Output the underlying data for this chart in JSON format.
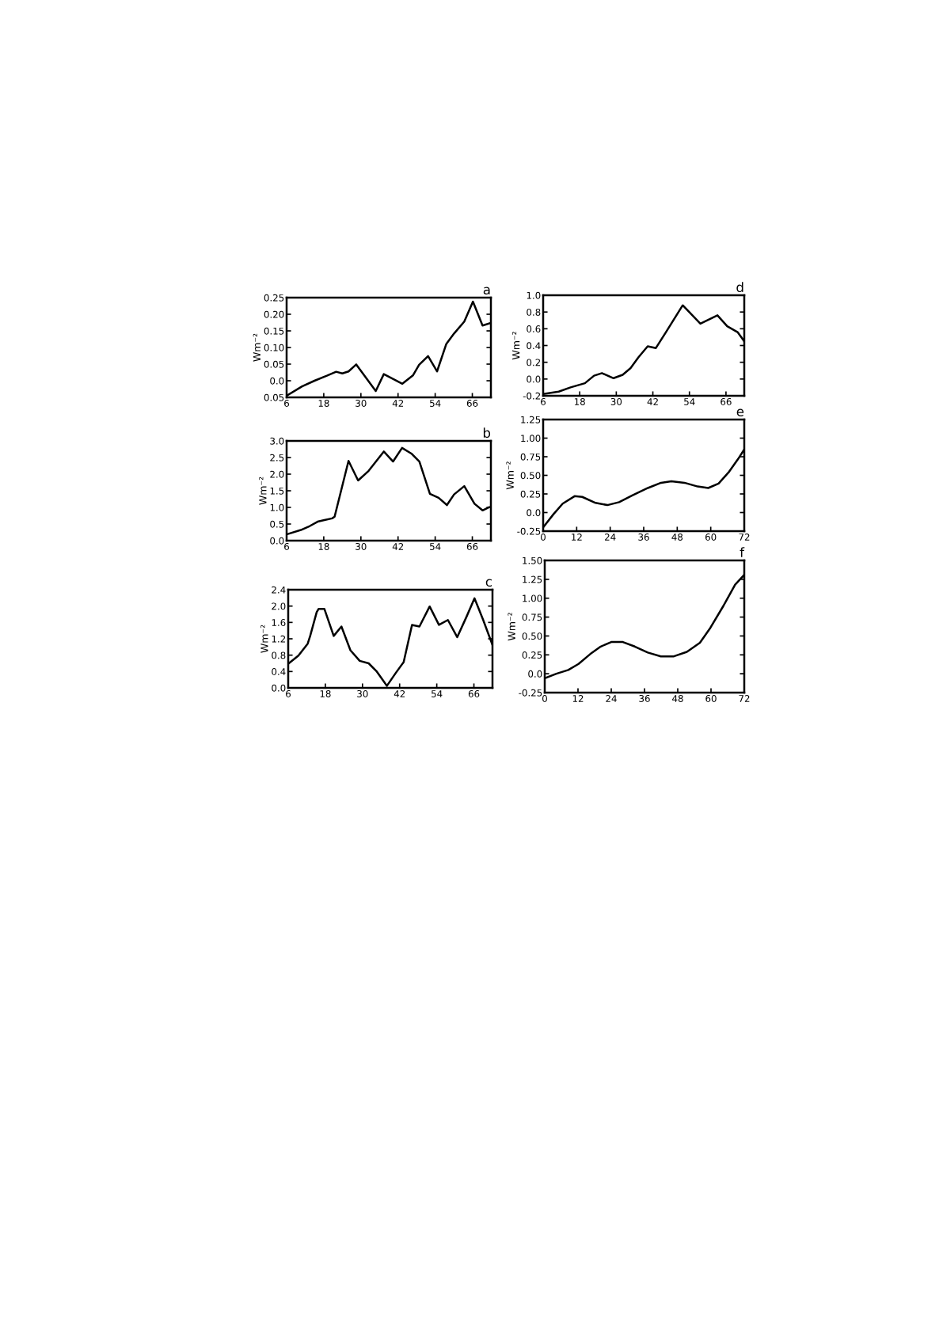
{
  "chart_data": [
    {
      "type": "line",
      "title": "a",
      "ylabel": "Wm⁻²",
      "x": [
        6,
        11,
        15,
        19,
        22,
        24,
        26,
        28.5,
        34.8,
        37.4,
        43.4,
        46.8,
        48.8,
        51.7,
        54.6,
        57.6,
        60.1,
        63.4,
        66.2,
        69.3,
        72
      ],
      "series": [
        {
          "color": "#000000",
          "values": [
            -0.045,
            -0.017,
            0.0,
            0.015,
            0.027,
            0.022,
            0.028,
            0.049,
            -0.031,
            0.02,
            -0.009,
            0.016,
            0.048,
            0.074,
            0.028,
            0.111,
            0.142,
            0.178,
            0.238,
            0.166,
            0.174
          ]
        }
      ],
      "xlim": [
        6,
        72
      ],
      "xticks": [
        6,
        18,
        30,
        42,
        54,
        66
      ],
      "ylim": [
        -0.05,
        0.25
      ],
      "yticks": [
        {
          "value": -0.05,
          "label": "0.05"
        },
        {
          "value": 0,
          "label": "0.0"
        },
        0.05,
        {
          "value": 0.1,
          "label": "0.10"
        },
        0.15,
        {
          "value": 0.2,
          "label": "0.20"
        },
        0.25
      ]
    },
    {
      "type": "line",
      "title": "b",
      "ylabel": "Wm⁻²",
      "x": [
        6.4,
        10.6,
        13.5,
        16,
        18.2,
        20.7,
        21.5,
        26,
        29.1,
        32.5,
        37.4,
        40.4,
        43.3,
        46.3,
        48.9,
        52.3,
        55.1,
        57.8,
        60.1,
        63.4,
        66.7,
        69.3,
        71.5
      ],
      "series": [
        {
          "color": "#000000",
          "values": [
            0.2,
            0.32,
            0.44,
            0.57,
            0.62,
            0.67,
            0.72,
            2.4,
            1.81,
            2.1,
            2.68,
            2.38,
            2.79,
            2.62,
            2.38,
            1.41,
            1.29,
            1.07,
            1.39,
            1.64,
            1.11,
            0.91,
            1.01
          ]
        }
      ],
      "xlim": [
        6,
        72
      ],
      "xticks": [
        6,
        18,
        30,
        42,
        54,
        66
      ],
      "ylim": [
        0,
        3
      ],
      "yticks": [
        {
          "value": 0,
          "label": "0.0"
        },
        0.5,
        {
          "value": 1,
          "label": "1.0"
        },
        1.5,
        {
          "value": 2,
          "label": "2.0"
        },
        2.5,
        {
          "value": 3,
          "label": "3.0"
        }
      ]
    },
    {
      "type": "line",
      "title": "c",
      "ylabel": "Wm⁻²",
      "x": [
        6.2,
        9.3,
        12.3,
        13.1,
        15.2,
        15.8,
        17.7,
        20.7,
        23.2,
        26.1,
        29.1,
        32,
        34.5,
        37.9,
        40.8,
        43.3,
        46,
        48.4,
        51.7,
        54.7,
        57.6,
        60.6,
        63.5,
        66.2,
        69,
        72
      ],
      "series": [
        {
          "color": "#000000",
          "values": [
            0.6,
            0.79,
            1.08,
            1.27,
            1.85,
            1.93,
            1.93,
            1.27,
            1.5,
            0.92,
            0.66,
            0.6,
            0.41,
            0.05,
            0.37,
            0.63,
            1.54,
            1.5,
            1.99,
            1.54,
            1.66,
            1.24,
            1.72,
            2.19,
            1.66,
            1.05
          ]
        }
      ],
      "xlim": [
        6,
        72
      ],
      "xticks": [
        6,
        18,
        30,
        42,
        54,
        66
      ],
      "ylim": [
        0,
        2.4
      ],
      "yticks": [
        {
          "value": 0,
          "label": "0.0"
        },
        0.4,
        0.8,
        1.2,
        1.6,
        {
          "value": 2,
          "label": "2.0"
        },
        2.4
      ]
    },
    {
      "type": "line",
      "title": "d",
      "ylabel": "Wm⁻²",
      "x": [
        6,
        11.1,
        15,
        19.7,
        22.7,
        25.3,
        29.1,
        32.1,
        34.7,
        37.3,
        40.3,
        43,
        46.3,
        51.8,
        57.6,
        63.2,
        66.4,
        69.8,
        72
      ],
      "series": [
        {
          "color": "#000000",
          "values": [
            -0.18,
            -0.15,
            -0.1,
            -0.05,
            0.04,
            0.07,
            0.01,
            0.05,
            0.13,
            0.26,
            0.39,
            0.37,
            0.56,
            0.88,
            0.66,
            0.76,
            0.63,
            0.56,
            0.45
          ]
        }
      ],
      "xlim": [
        6,
        72
      ],
      "xticks": [
        6,
        18,
        30,
        42,
        54,
        66
      ],
      "ylim": [
        -0.2,
        1.0
      ],
      "yticks": [
        -0.2,
        {
          "value": 0,
          "label": "0.0"
        },
        0.2,
        0.4,
        0.6,
        0.8,
        {
          "value": 1,
          "label": "1.0"
        }
      ]
    },
    {
      "type": "line",
      "title": "e",
      "ylabel": "Wm⁻²",
      "x": [
        0,
        3.75,
        7,
        11.25,
        14,
        18.75,
        23,
        27.2,
        31.9,
        37.5,
        42.2,
        45.9,
        50.6,
        55.3,
        59.1,
        62.8,
        66.6,
        69.8,
        72
      ],
      "series": [
        {
          "color": "#000000",
          "values": [
            -0.2,
            -0.02,
            0.12,
            0.22,
            0.21,
            0.13,
            0.1,
            0.14,
            0.23,
            0.33,
            0.4,
            0.42,
            0.4,
            0.35,
            0.33,
            0.39,
            0.55,
            0.72,
            0.85
          ]
        }
      ],
      "xlim": [
        0,
        72
      ],
      "xticks": [
        0,
        12,
        24,
        36,
        48,
        60,
        72
      ],
      "ylim": [
        -0.25,
        1.25
      ],
      "yticks": [
        -0.25,
        {
          "value": 0,
          "label": "0.0"
        },
        0.25,
        {
          "value": 0.5,
          "label": "0.50"
        },
        0.75,
        {
          "value": 1.0,
          "label": "1.00"
        },
        1.25
      ]
    },
    {
      "type": "line",
      "title": "f",
      "ylabel": "Wm⁻²",
      "x": [
        0,
        4.2,
        8.5,
        12.2,
        16.4,
        20.2,
        24,
        28.2,
        32.5,
        37.2,
        41.9,
        46.6,
        51.3,
        56,
        59.8,
        64.5,
        68.7,
        72
      ],
      "series": [
        {
          "color": "#000000",
          "values": [
            -0.06,
            0.0,
            0.05,
            0.13,
            0.26,
            0.36,
            0.42,
            0.42,
            0.36,
            0.28,
            0.23,
            0.23,
            0.29,
            0.41,
            0.61,
            0.9,
            1.18,
            1.31
          ]
        }
      ],
      "xlim": [
        0,
        72
      ],
      "xticks": [
        0,
        12,
        24,
        36,
        48,
        60,
        72
      ],
      "ylim": [
        -0.25,
        1.5
      ],
      "yticks": [
        -0.25,
        {
          "value": 0,
          "label": "0.0"
        },
        0.25,
        {
          "value": 0.5,
          "label": "0.50"
        },
        0.75,
        {
          "value": 1.0,
          "label": "1.00"
        },
        1.25,
        {
          "value": 1.5,
          "label": "1.50"
        }
      ]
    }
  ]
}
